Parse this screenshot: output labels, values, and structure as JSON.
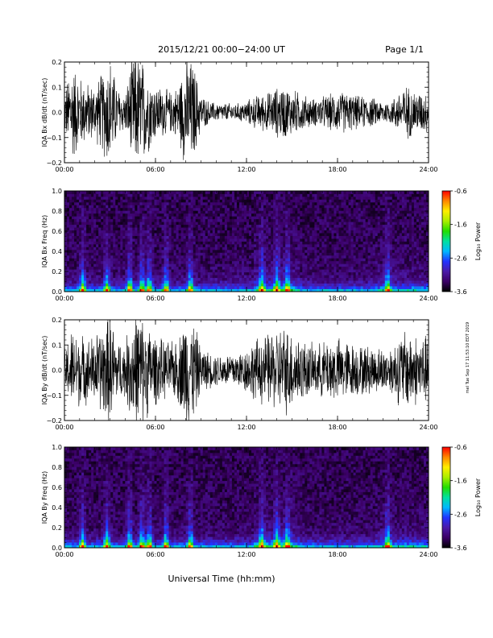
{
  "header": {
    "title": "2015/12/21   00:00−24:00  UT",
    "page": "Page 1/1"
  },
  "side_stamp": "mel Tue Sep 17 11:53:10 EDT 2019",
  "colors": {
    "trace": "#000000",
    "colorbar": [
      "#000000",
      "#3b0066",
      "#4b1aa8",
      "#2233ff",
      "#00b8ff",
      "#00e0a0",
      "#22dd00",
      "#aaee00",
      "#ffee00",
      "#ff8800",
      "#ff0000"
    ]
  },
  "chart_data": [
    {
      "type": "line",
      "ylabel": "IQA Bx dB/dt (nT/sec)",
      "xlim": [
        0,
        24
      ],
      "ylim": [
        -0.2,
        0.2
      ],
      "xticks": [
        "00:00",
        "06:00",
        "12:00",
        "18:00",
        "24:00"
      ],
      "yticks": [
        "0.2",
        "0.1",
        "0.0",
        "−0.1",
        "−0.2"
      ],
      "envelope": {
        "hours": [
          0,
          0.5,
          1,
          1.5,
          2,
          2.5,
          3,
          3.5,
          4,
          4.5,
          5,
          5.5,
          6,
          6.5,
          7,
          7.5,
          8,
          8.5,
          9,
          9.5,
          10,
          10.5,
          11,
          11.5,
          12,
          12.5,
          13,
          13.5,
          14,
          14.5,
          15,
          15.5,
          16,
          16.5,
          17,
          17.5,
          18,
          18.5,
          19,
          19.5,
          20,
          20.5,
          21,
          21.5,
          22,
          22.5,
          23,
          23.5,
          24
        ],
        "amplitude": [
          0.09,
          0.22,
          0.16,
          0.13,
          0.12,
          0.18,
          0.25,
          0.11,
          0.08,
          0.25,
          0.25,
          0.18,
          0.12,
          0.11,
          0.09,
          0.12,
          0.25,
          0.22,
          0.08,
          0.05,
          0.04,
          0.04,
          0.04,
          0.04,
          0.05,
          0.07,
          0.08,
          0.09,
          0.11,
          0.12,
          0.1,
          0.09,
          0.07,
          0.06,
          0.07,
          0.08,
          0.09,
          0.09,
          0.08,
          0.07,
          0.07,
          0.06,
          0.05,
          0.05,
          0.09,
          0.12,
          0.1,
          0.09,
          0.09
        ]
      }
    },
    {
      "type": "heatmap",
      "ylabel": "IQA Bx Freq (Hz)",
      "xlim": [
        0,
        24
      ],
      "ylim": [
        0,
        1
      ],
      "xticks": [
        "00:00",
        "06:00",
        "12:00",
        "18:00",
        "24:00"
      ],
      "yticks": [
        "1.0",
        "0.8",
        "0.6",
        "0.4",
        "0.2",
        "0.0"
      ],
      "colorbar": {
        "label": "Log₁₀ Power",
        "range": [
          -3.6,
          -0.6
        ],
        "ticks": [
          "-0.6",
          "-1.6",
          "-2.6",
          "-3.6"
        ]
      },
      "hot_hours": [
        1.2,
        2.8,
        4.3,
        5.1,
        5.6,
        6.7,
        8.3,
        13.0,
        14.0,
        14.7,
        21.3
      ]
    },
    {
      "type": "line",
      "ylabel": "IQA By dB/dt (nT/sec)",
      "xlim": [
        0,
        24
      ],
      "ylim": [
        -0.2,
        0.2
      ],
      "xticks": [
        "00:00",
        "06:00",
        "12:00",
        "18:00",
        "24:00"
      ],
      "yticks": [
        "0.2",
        "0.1",
        "0.0",
        "−0.1",
        "−0.2"
      ],
      "envelope": {
        "hours": [
          0,
          0.5,
          1,
          1.5,
          2,
          2.5,
          3,
          3.5,
          4,
          4.5,
          5,
          5.5,
          6,
          6.5,
          7,
          7.5,
          8,
          8.5,
          9,
          9.5,
          10,
          10.5,
          11,
          11.5,
          12,
          12.5,
          13,
          13.5,
          14,
          14.5,
          15,
          15.5,
          16,
          16.5,
          17,
          17.5,
          18,
          18.5,
          19,
          19.5,
          20,
          20.5,
          21,
          21.5,
          22,
          22.5,
          23,
          23.5,
          24
        ],
        "amplitude": [
          0.1,
          0.18,
          0.16,
          0.14,
          0.15,
          0.2,
          0.25,
          0.13,
          0.12,
          0.25,
          0.25,
          0.2,
          0.15,
          0.13,
          0.12,
          0.14,
          0.25,
          0.22,
          0.1,
          0.08,
          0.07,
          0.07,
          0.08,
          0.08,
          0.1,
          0.13,
          0.15,
          0.16,
          0.18,
          0.2,
          0.17,
          0.15,
          0.12,
          0.11,
          0.12,
          0.14,
          0.14,
          0.13,
          0.12,
          0.11,
          0.11,
          0.1,
          0.1,
          0.1,
          0.15,
          0.18,
          0.16,
          0.15,
          0.15
        ]
      }
    },
    {
      "type": "heatmap",
      "ylabel": "IQA By Freq (Hz)",
      "xlim": [
        0,
        24
      ],
      "ylim": [
        0,
        1
      ],
      "xticks": [
        "00:00",
        "06:00",
        "12:00",
        "18:00",
        "24:00"
      ],
      "yticks": [
        "1.0",
        "0.8",
        "0.6",
        "0.4",
        "0.2",
        "0.0"
      ],
      "colorbar": {
        "label": "Log₁₀ Power",
        "range": [
          -3.6,
          -0.6
        ],
        "ticks": [
          "-0.6",
          "-1.6",
          "-2.6",
          "-3.6"
        ]
      },
      "hot_hours": [
        1.2,
        2.8,
        4.3,
        5.1,
        5.6,
        6.7,
        8.3,
        13.0,
        14.0,
        14.7,
        21.3
      ]
    }
  ],
  "xlabel": "Universal Time (hh:mm)"
}
